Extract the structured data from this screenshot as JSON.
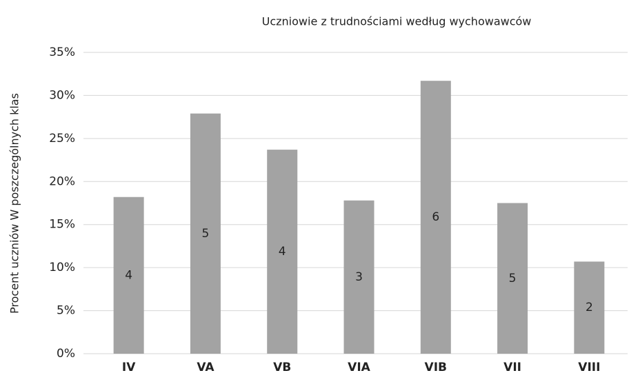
{
  "chart_data": {
    "type": "bar",
    "title": "Uczniowie z trudnościami według wychowawców",
    "y_label": "Procent uczniów W poszczególnych klas",
    "categories": [
      "IV",
      "VA",
      "VB",
      "VIA",
      "VIB",
      "VII",
      "VIII"
    ],
    "values": [
      18.2,
      27.9,
      23.7,
      17.8,
      31.7,
      17.5,
      10.7
    ],
    "bar_labels": [
      4,
      5,
      4,
      3,
      6,
      5,
      2
    ],
    "color": "#a3a3a3",
    "ylim": [
      0,
      35
    ],
    "yticks": [
      {
        "value": 0,
        "label": "0%"
      },
      {
        "value": 5,
        "label": "5%"
      },
      {
        "value": 10,
        "label": "10%"
      },
      {
        "value": 15,
        "label": "15%"
      },
      {
        "value": 20,
        "label": "20%"
      },
      {
        "value": 25,
        "label": "25%"
      },
      {
        "value": 30,
        "label": "30%"
      },
      {
        "value": 35,
        "label": "35%"
      }
    ],
    "grid": true
  }
}
